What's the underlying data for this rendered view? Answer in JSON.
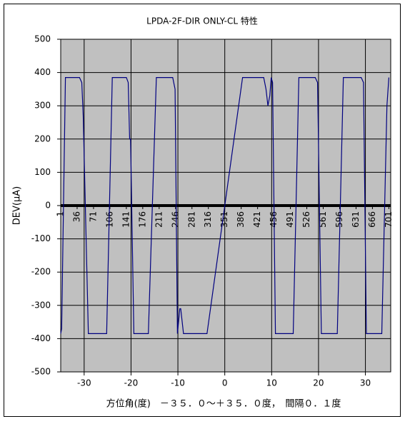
{
  "chart_data": {
    "type": "line",
    "title": "LPDA-2F-DIR ONLY-CL 特性",
    "y_label": "DEV(μA)",
    "x_label": "方位角(度)　－３５．０～＋３５．０度，　間隔０．１度",
    "x": [
      -35.0,
      -34.8,
      -34.0,
      -33.5,
      -31.0,
      -30.5,
      -30.2,
      -29.1,
      -25.2,
      -24.0,
      -23.6,
      -21.0,
      -20.6,
      -20.3,
      -20.1,
      -19.4,
      -16.3,
      -14.6,
      -14.3,
      -11.1,
      -10.6,
      -10.1,
      -9.6,
      -9.4,
      -8.8,
      -3.8,
      3.8,
      8.3,
      8.8,
      9.2,
      9.6,
      9.9,
      10.2,
      10.8,
      14.6,
      15.8,
      16.2,
      19.3,
      19.8,
      20.6,
      24.0,
      25.3,
      25.7,
      29.1,
      29.6,
      30.2,
      33.5,
      34.6,
      35.0
    ],
    "values": [
      -385,
      -370,
      385,
      385,
      385,
      370,
      270,
      -385,
      -385,
      385,
      385,
      385,
      370,
      200,
      200,
      -385,
      -385,
      385,
      385,
      385,
      350,
      -385,
      -310,
      -310,
      -385,
      -385,
      385,
      385,
      350,
      300,
      330,
      385,
      370,
      -385,
      -385,
      385,
      385,
      385,
      370,
      -385,
      -385,
      385,
      385,
      385,
      370,
      -385,
      -385,
      300,
      385
    ],
    "color": "#000080",
    "xlim": [
      -35,
      35.4
    ],
    "xticks": [
      -30,
      -20,
      -10,
      0,
      10,
      20,
      30
    ],
    "x2lim": [
      1,
      705
    ],
    "x2ticks": [
      1,
      36,
      71,
      106,
      141,
      176,
      211,
      246,
      281,
      316,
      351,
      386,
      421,
      456,
      491,
      526,
      561,
      596,
      631,
      666,
      701
    ],
    "ylim": [
      -500,
      500
    ],
    "yticks": [
      -500,
      -400,
      -300,
      -200,
      -100,
      0,
      100,
      200,
      300,
      400,
      500
    ],
    "grid": true,
    "plot_background": "#c0c0c0"
  }
}
